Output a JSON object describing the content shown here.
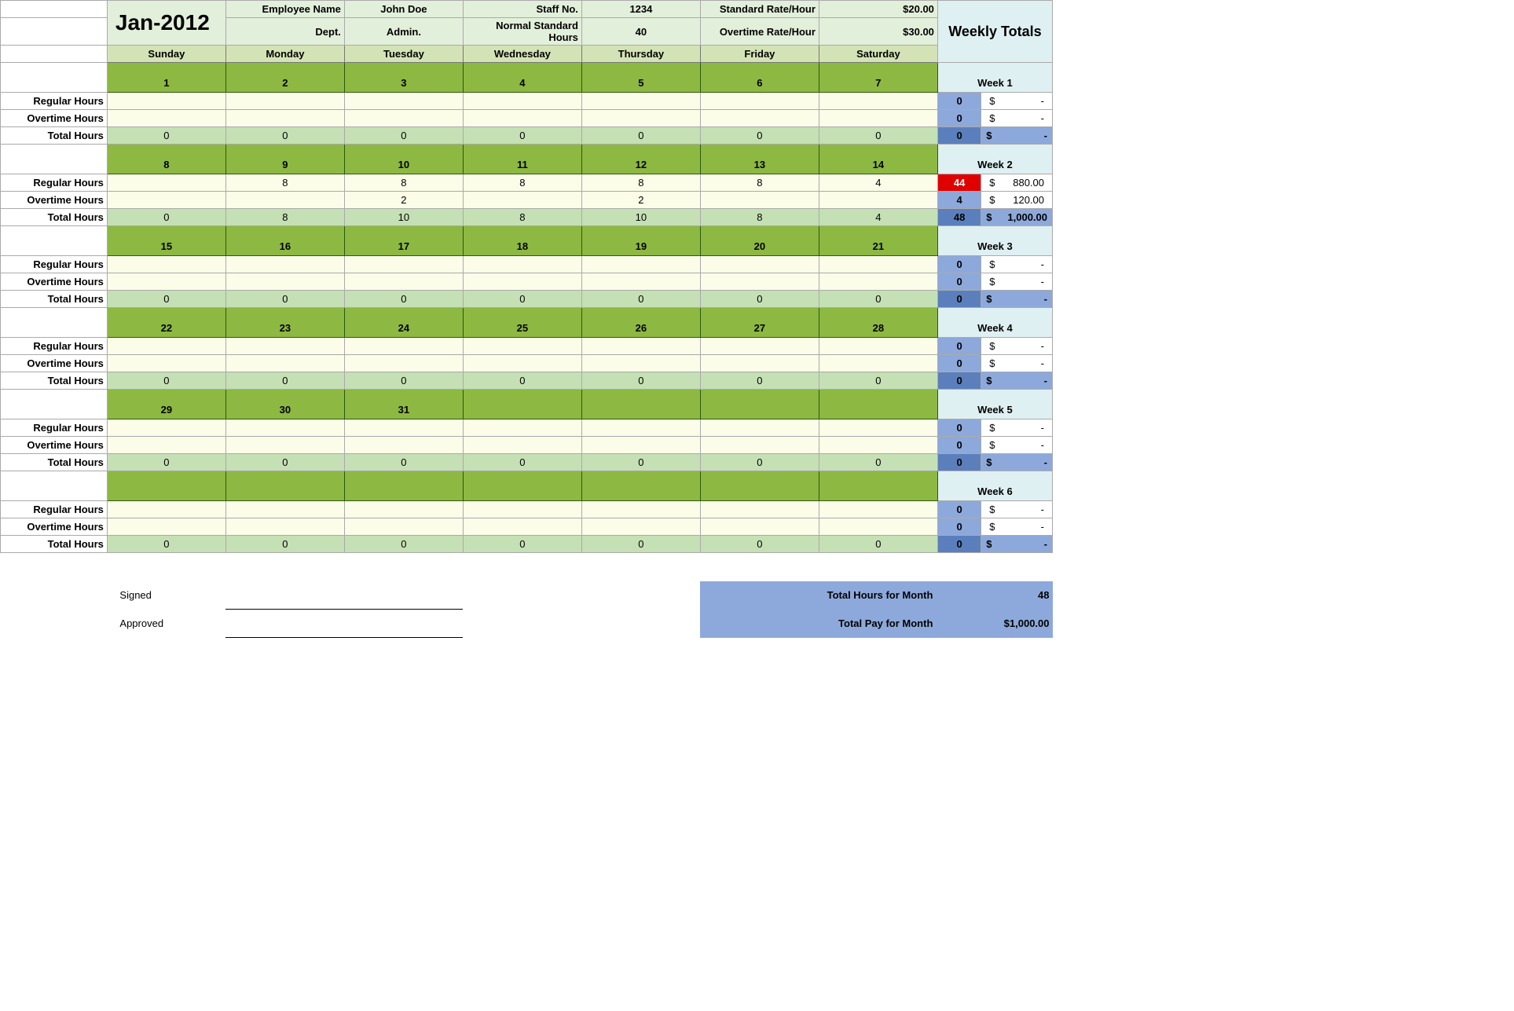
{
  "header": {
    "month": "Jan-2012",
    "fields": {
      "emp_name_label": "Employee Name",
      "emp_name": "John Doe",
      "staff_no_label": "Staff No.",
      "staff_no": "1234",
      "std_rate_label": "Standard Rate/Hour",
      "std_rate": "$20.00",
      "dept_label": "Dept.",
      "dept": "Admin.",
      "norm_hours_label": "Normal Standard Hours",
      "norm_hours": "40",
      "ot_rate_label": "Overtime Rate/Hour",
      "ot_rate": "$30.00"
    },
    "days": [
      "Sunday",
      "Monday",
      "Tuesday",
      "Wednesday",
      "Thursday",
      "Friday",
      "Saturday"
    ],
    "weekly_totals": "Weekly Totals"
  },
  "row_labels": {
    "reg": "Regular Hours",
    "ot": "Overtime Hours",
    "tot": "Total Hours"
  },
  "weeks": [
    {
      "name": "Week 1",
      "dates": [
        "1",
        "2",
        "3",
        "4",
        "5",
        "6",
        "7"
      ],
      "reg": [
        "",
        "",
        "",
        "",
        "",
        "",
        ""
      ],
      "ot": [
        "",
        "",
        "",
        "",
        "",
        "",
        ""
      ],
      "tot": [
        "0",
        "0",
        "0",
        "0",
        "0",
        "0",
        "0"
      ],
      "wt_reg": "0",
      "wt_reg_money": "-",
      "wt_reg_warn": false,
      "wt_ot": "0",
      "wt_ot_money": "-",
      "wt_tot": "0",
      "wt_tot_money": "-"
    },
    {
      "name": "Week 2",
      "dates": [
        "8",
        "9",
        "10",
        "11",
        "12",
        "13",
        "14"
      ],
      "reg": [
        "",
        "8",
        "8",
        "8",
        "8",
        "8",
        "4"
      ],
      "ot": [
        "",
        "",
        "2",
        "",
        "2",
        "",
        ""
      ],
      "tot": [
        "0",
        "8",
        "10",
        "8",
        "10",
        "8",
        "4"
      ],
      "wt_reg": "44",
      "wt_reg_money": "880.00",
      "wt_reg_warn": true,
      "wt_ot": "4",
      "wt_ot_money": "120.00",
      "wt_tot": "48",
      "wt_tot_money": "1,000.00"
    },
    {
      "name": "Week 3",
      "dates": [
        "15",
        "16",
        "17",
        "18",
        "19",
        "20",
        "21"
      ],
      "reg": [
        "",
        "",
        "",
        "",
        "",
        "",
        ""
      ],
      "ot": [
        "",
        "",
        "",
        "",
        "",
        "",
        ""
      ],
      "tot": [
        "0",
        "0",
        "0",
        "0",
        "0",
        "0",
        "0"
      ],
      "wt_reg": "0",
      "wt_reg_money": "-",
      "wt_reg_warn": false,
      "wt_ot": "0",
      "wt_ot_money": "-",
      "wt_tot": "0",
      "wt_tot_money": "-"
    },
    {
      "name": "Week 4",
      "dates": [
        "22",
        "23",
        "24",
        "25",
        "26",
        "27",
        "28"
      ],
      "reg": [
        "",
        "",
        "",
        "",
        "",
        "",
        ""
      ],
      "ot": [
        "",
        "",
        "",
        "",
        "",
        "",
        ""
      ],
      "tot": [
        "0",
        "0",
        "0",
        "0",
        "0",
        "0",
        "0"
      ],
      "wt_reg": "0",
      "wt_reg_money": "-",
      "wt_reg_warn": false,
      "wt_ot": "0",
      "wt_ot_money": "-",
      "wt_tot": "0",
      "wt_tot_money": "-"
    },
    {
      "name": "Week 5",
      "dates": [
        "29",
        "30",
        "31",
        "",
        "",
        "",
        ""
      ],
      "reg": [
        "",
        "",
        "",
        "",
        "",
        "",
        ""
      ],
      "ot": [
        "",
        "",
        "",
        "",
        "",
        "",
        ""
      ],
      "tot": [
        "0",
        "0",
        "0",
        "0",
        "0",
        "0",
        "0"
      ],
      "wt_reg": "0",
      "wt_reg_money": "-",
      "wt_reg_warn": false,
      "wt_ot": "0",
      "wt_ot_money": "-",
      "wt_tot": "0",
      "wt_tot_money": "-"
    },
    {
      "name": "Week 6",
      "dates": [
        "",
        "",
        "",
        "",
        "",
        "",
        ""
      ],
      "reg": [
        "",
        "",
        "",
        "",
        "",
        "",
        ""
      ],
      "ot": [
        "",
        "",
        "",
        "",
        "",
        "",
        ""
      ],
      "tot": [
        "0",
        "0",
        "0",
        "0",
        "0",
        "0",
        "0"
      ],
      "wt_reg": "0",
      "wt_reg_money": "-",
      "wt_reg_warn": false,
      "wt_ot": "0",
      "wt_ot_money": "-",
      "wt_tot": "0",
      "wt_tot_money": "-"
    }
  ],
  "footer": {
    "signed": "Signed",
    "approved": "Approved",
    "tot_hours_label": "Total Hours for Month",
    "tot_hours": "48",
    "tot_pay_label": "Total Pay for Month",
    "tot_pay": "$1,000.00"
  },
  "colors": {
    "olive_light": "#e2efda",
    "olive_med": "#d4e3b5",
    "green_dark": "#8db842",
    "cream": "#fbfde8",
    "green_total": "#c5e0b4",
    "blue_light": "#dff0f3",
    "blue_med": "#8da9db",
    "blue_dark": "#5b7fbd",
    "red": "#e00000"
  }
}
